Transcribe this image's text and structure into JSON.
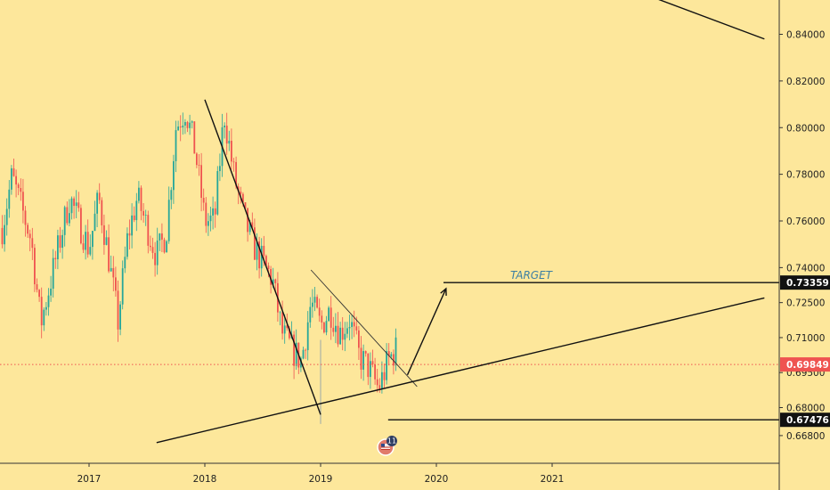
{
  "chart_data": {
    "type": "candlestick",
    "price_axis_ticks": [
      0.84,
      0.82,
      0.8,
      0.78,
      0.76,
      0.74,
      0.725,
      0.71,
      0.695,
      0.68,
      0.668
    ],
    "price_axis_tick_labels": [
      "0.84000",
      "0.82000",
      "0.80000",
      "0.78000",
      "0.76000",
      "0.74000",
      "0.72500",
      "0.71000",
      "0.69500",
      "0.68000",
      "0.66800"
    ],
    "time_axis_ticks": [
      "2017",
      "2018",
      "2019",
      "2020",
      "2021"
    ],
    "price_tags": [
      {
        "label": "0.73359",
        "value": 0.73359,
        "color": "#111111"
      },
      {
        "label": "0.69849",
        "value": 0.69849,
        "color": "#ef5350"
      },
      {
        "label": "0.67476",
        "value": 0.67476,
        "color": "#111111"
      }
    ],
    "annotations": {
      "target_label": "TARGET",
      "target_value": 0.73359,
      "support_value": 0.67476,
      "current_value": 0.69849
    },
    "series_anchor_points": [
      {
        "t": "2016-04",
        "v": 0.757
      },
      {
        "t": "2016-05",
        "v": 0.779
      },
      {
        "t": "2016-07",
        "v": 0.752
      },
      {
        "t": "2016-08",
        "v": 0.716
      },
      {
        "t": "2016-10",
        "v": 0.752
      },
      {
        "t": "2016-11",
        "v": 0.77
      },
      {
        "t": "2017-01",
        "v": 0.748
      },
      {
        "t": "2017-02",
        "v": 0.77
      },
      {
        "t": "2017-03",
        "v": 0.745
      },
      {
        "t": "2017-04",
        "v": 0.717
      },
      {
        "t": "2017-05",
        "v": 0.753
      },
      {
        "t": "2017-06",
        "v": 0.77
      },
      {
        "t": "2017-08",
        "v": 0.745
      },
      {
        "t": "2017-09",
        "v": 0.755
      },
      {
        "t": "2017-10",
        "v": 0.8
      },
      {
        "t": "2017-11",
        "v": 0.808
      },
      {
        "t": "2017-12",
        "v": 0.79
      },
      {
        "t": "2018-01",
        "v": 0.76
      },
      {
        "t": "2018-02",
        "v": 0.76
      },
      {
        "t": "2018-03",
        "v": 0.806
      },
      {
        "t": "2018-04",
        "v": 0.78
      },
      {
        "t": "2018-05",
        "v": 0.762
      },
      {
        "t": "2018-06",
        "v": 0.75
      },
      {
        "t": "2018-07",
        "v": 0.742
      },
      {
        "t": "2018-08",
        "v": 0.735
      },
      {
        "t": "2018-09",
        "v": 0.712
      },
      {
        "t": "2018-10",
        "v": 0.705
      },
      {
        "t": "2018-11",
        "v": 0.7
      },
      {
        "t": "2018-12",
        "v": 0.725
      },
      {
        "t": "2019-01",
        "v": 0.715
      },
      {
        "t": "2019-02",
        "v": 0.722
      },
      {
        "t": "2019-03",
        "v": 0.712
      },
      {
        "t": "2019-04",
        "v": 0.718
      },
      {
        "t": "2019-05",
        "v": 0.702
      },
      {
        "t": "2019-06",
        "v": 0.697
      },
      {
        "t": "2019-07",
        "v": 0.688
      },
      {
        "t": "2019-08",
        "v": 0.7
      },
      {
        "t": "2019-09",
        "v": 0.706
      }
    ],
    "trendlines": [
      {
        "name": "upper-right-line",
        "from": {
          "t": "2021-12",
          "v": 0.855
        },
        "to": {
          "t": "2022-11",
          "v": 0.838
        }
      },
      {
        "name": "falling-wedge-steep",
        "from": {
          "t": "2018-01",
          "v": 0.812
        },
        "to": {
          "t": "2019-01",
          "v": 0.677
        }
      },
      {
        "name": "falling-wedge-flat",
        "from": {
          "t": "2018-12",
          "v": 0.739
        },
        "to": {
          "t": "2019-11",
          "v": 0.689
        }
      },
      {
        "name": "long-support",
        "from": {
          "t": "2017-08",
          "v": 0.665
        },
        "to": {
          "t": "2022-11",
          "v": 0.727
        }
      },
      {
        "name": "projected-path",
        "from": {
          "t": "2019-10",
          "v": 0.694
        },
        "to": {
          "t": "2020-02",
          "v": 0.731
        }
      }
    ],
    "grid": false,
    "legend": "none"
  }
}
